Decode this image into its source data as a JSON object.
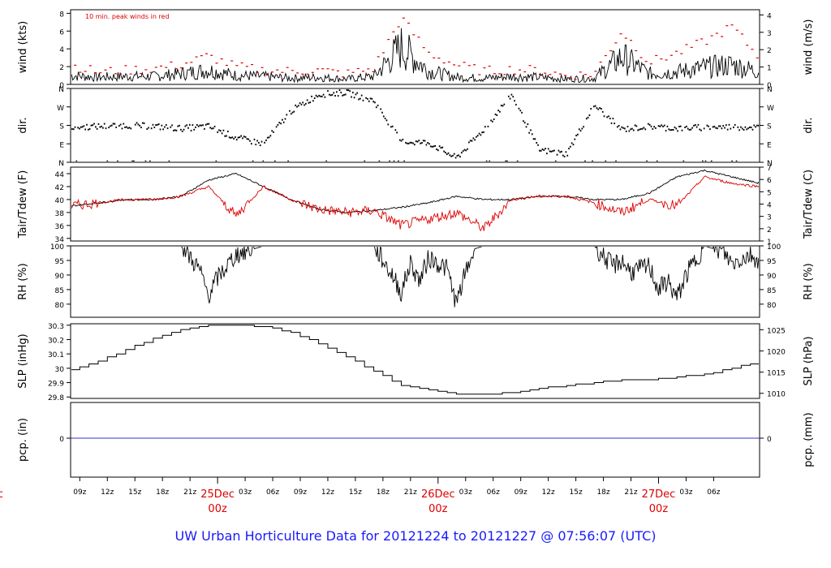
{
  "title": "UW Urban Horticulture Data for 20121224  to  20121227 @ 07:56:07  (UTC)",
  "title_color": "#1a1aff",
  "colors": {
    "primary": "#000000",
    "secondary": "#dd0000",
    "zero_line": "#3333cc"
  },
  "chart_data": [
    {
      "id": "wind",
      "type": "line",
      "ylabel_left": "wind (kts)",
      "ylabel_right": "wind (m/s)",
      "annotation": "10 min. peak winds in red",
      "ylim": [
        0,
        8.4
      ],
      "yticks_left": [
        0,
        2,
        4,
        6,
        8
      ],
      "ylim_right": [
        0,
        4.3
      ],
      "yticks_right": [
        0,
        1,
        2,
        3,
        4
      ],
      "series": [
        {
          "role": "mean",
          "t": [
            0,
            3,
            6,
            9,
            12,
            15,
            18,
            21,
            24,
            27,
            30,
            33,
            36,
            39,
            42,
            45,
            48,
            51,
            54,
            57,
            60,
            63,
            66,
            69,
            72,
            75
          ],
          "values": [
            1.0,
            0.8,
            0.9,
            0.9,
            1.2,
            1.6,
            1.0,
            0.9,
            0.7,
            0.8,
            0.6,
            0.9,
            4.2,
            1.5,
            0.8,
            0.7,
            0.9,
            0.8,
            0.6,
            0.7,
            3.1,
            1.2,
            1.4,
            1.9,
            2.2,
            1.4
          ]
        },
        {
          "role": "peak",
          "t": [
            0,
            3,
            6,
            9,
            12,
            15,
            18,
            21,
            24,
            27,
            30,
            33,
            36,
            39,
            42,
            45,
            48,
            51,
            54,
            57,
            60,
            63,
            66,
            69,
            72,
            75
          ],
          "values": [
            2.2,
            1.4,
            1.6,
            1.8,
            2.2,
            3.2,
            2.0,
            1.6,
            1.5,
            1.6,
            1.2,
            1.8,
            7.5,
            3.5,
            2.2,
            1.5,
            1.7,
            1.6,
            1.0,
            1.2,
            6.0,
            2.5,
            3.5,
            4.8,
            6.5,
            3.0
          ]
        }
      ]
    },
    {
      "id": "dir",
      "type": "scatter",
      "ylabel": "dir.",
      "ylim": [
        0,
        360
      ],
      "yticks": [
        0,
        90,
        180,
        270,
        360
      ],
      "ytick_labels": [
        "N",
        "E",
        "S",
        "W",
        "N"
      ],
      "series": [
        {
          "t": [
            0,
            3,
            6,
            9,
            12,
            15,
            18,
            21,
            24,
            27,
            30,
            33,
            36,
            39,
            42,
            45,
            48,
            51,
            54,
            57,
            60,
            63,
            66,
            69,
            72,
            75
          ],
          "values": [
            170,
            175,
            180,
            175,
            165,
            175,
            120,
            90,
            250,
            330,
            340,
            300,
            100,
            95,
            20,
            160,
            330,
            60,
            40,
            280,
            160,
            175,
            165,
            170,
            172,
            170
          ]
        }
      ]
    },
    {
      "id": "temp",
      "type": "line",
      "ylabel_left": "Tair/Tdew (F)",
      "ylabel_right": "Tair/Tdew (C)",
      "ylim": [
        33.6,
        45
      ],
      "yticks_left": [
        34,
        36,
        38,
        40,
        42,
        44
      ],
      "ylim_right": [
        1,
        7
      ],
      "yticks_right": [
        1,
        2,
        3,
        4,
        5,
        6,
        7
      ],
      "series": [
        {
          "role": "Tair",
          "t": [
            0,
            3,
            6,
            9,
            12,
            15,
            18,
            21,
            24,
            27,
            30,
            33,
            36,
            39,
            42,
            45,
            48,
            51,
            54,
            57,
            60,
            63,
            66,
            69,
            72,
            75
          ],
          "values": [
            39.0,
            39.5,
            40.0,
            40.0,
            40.5,
            43.0,
            44.0,
            42.0,
            40.0,
            38.5,
            38.0,
            38.3,
            38.8,
            39.5,
            40.5,
            40.0,
            40.0,
            40.5,
            40.5,
            40.0,
            40.0,
            41.0,
            43.5,
            44.5,
            43.5,
            42.5
          ]
        },
        {
          "role": "Tdew",
          "t": [
            0,
            3,
            6,
            9,
            12,
            15,
            18,
            21,
            24,
            27,
            30,
            33,
            36,
            39,
            42,
            45,
            48,
            51,
            54,
            57,
            60,
            63,
            66,
            69,
            72,
            75
          ],
          "values": [
            39.0,
            39.5,
            40.0,
            40.0,
            40.5,
            42.0,
            37.5,
            42.0,
            40.0,
            38.5,
            38.0,
            38.3,
            36.0,
            37.0,
            38.0,
            35.5,
            40.0,
            40.5,
            40.5,
            39.5,
            38.0,
            40.0,
            39.0,
            43.5,
            42.5,
            42.0
          ]
        }
      ]
    },
    {
      "id": "rh",
      "type": "line",
      "ylabel_left": "RH (%)",
      "ylabel_right": "RH (%)",
      "ylim": [
        75.5,
        100
      ],
      "yticks_left": [
        80,
        85,
        90,
        95,
        100
      ],
      "yticks_right": [
        80,
        85,
        90,
        95,
        100
      ],
      "series": [
        {
          "t": [
            0,
            3,
            6,
            9,
            12,
            14,
            15,
            16,
            18,
            21,
            24,
            27,
            30,
            33,
            35,
            36,
            37,
            38,
            39,
            41,
            42,
            43,
            44,
            45,
            48,
            51,
            54,
            57,
            59,
            60,
            61,
            63,
            64,
            65,
            66,
            67,
            69,
            71,
            72,
            74,
            75
          ],
          "values": [
            100,
            100,
            100,
            100,
            100,
            92,
            83,
            89,
            97,
            100,
            100,
            100,
            100,
            100,
            90,
            84,
            94,
            88,
            96,
            92,
            80,
            91,
            99,
            100,
            100,
            100,
            100,
            100,
            93,
            95,
            91,
            93,
            85,
            88,
            82,
            90,
            100,
            98,
            94,
            97,
            95
          ]
        }
      ]
    },
    {
      "id": "slp",
      "type": "line",
      "ylabel_left": "SLP (inHg)",
      "ylabel_right": "SLP (hPa)",
      "ylim": [
        29.79,
        30.31
      ],
      "yticks_left": [
        29.8,
        29.9,
        30.0,
        30.1,
        30.2,
        30.3
      ],
      "ylim_right": [
        1008.8,
        1026.4
      ],
      "yticks_right": [
        1010,
        1015,
        1020,
        1025
      ],
      "series": [
        {
          "t": [
            0,
            3,
            6,
            9,
            12,
            15,
            18,
            21,
            24,
            27,
            30,
            33,
            36,
            39,
            42,
            45,
            48,
            51,
            54,
            57,
            60,
            63,
            66,
            69,
            72,
            75
          ],
          "values": [
            29.99,
            30.05,
            30.13,
            30.21,
            30.27,
            30.3,
            30.3,
            30.29,
            30.25,
            30.17,
            30.08,
            29.98,
            29.88,
            29.85,
            29.82,
            29.82,
            29.83,
            29.86,
            29.88,
            29.9,
            29.92,
            29.92,
            29.94,
            29.96,
            30.0,
            30.05
          ]
        }
      ]
    },
    {
      "id": "pcp",
      "type": "line",
      "ylabel_left": "pcp. (in)",
      "ylabel_right": "pcp. (mm)",
      "ytick_left": "0",
      "ytick_right": "0",
      "series": [
        {
          "t": [
            0,
            75
          ],
          "values": [
            0,
            0
          ]
        }
      ]
    }
  ],
  "x_axis": {
    "hour_ticks": [
      {
        "t": 1,
        "label": "09z"
      },
      {
        "t": 4,
        "label": "12z"
      },
      {
        "t": 7,
        "label": "15z"
      },
      {
        "t": 10,
        "label": "18z"
      },
      {
        "t": 13,
        "label": "21z"
      },
      {
        "t": 19,
        "label": "03z"
      },
      {
        "t": 22,
        "label": "06z"
      },
      {
        "t": 25,
        "label": "09z"
      },
      {
        "t": 28,
        "label": "12z"
      },
      {
        "t": 31,
        "label": "15z"
      },
      {
        "t": 34,
        "label": "18z"
      },
      {
        "t": 37,
        "label": "21z"
      },
      {
        "t": 43,
        "label": "03z"
      },
      {
        "t": 46,
        "label": "06z"
      },
      {
        "t": 49,
        "label": "09z"
      },
      {
        "t": 52,
        "label": "12z"
      },
      {
        "t": 55,
        "label": "15z"
      },
      {
        "t": 58,
        "label": "18z"
      },
      {
        "t": 61,
        "label": "21z"
      },
      {
        "t": 67,
        "label": "03z"
      },
      {
        "t": 70,
        "label": "06z"
      }
    ],
    "day_ticks": [
      {
        "t": -8,
        "label": "ec",
        "label2": "z"
      },
      {
        "t": 16,
        "label": "25Dec",
        "label2": "00z"
      },
      {
        "t": 40,
        "label": "26Dec",
        "label2": "00z"
      },
      {
        "t": 64,
        "label": "27Dec",
        "label2": "00z"
      }
    ]
  }
}
